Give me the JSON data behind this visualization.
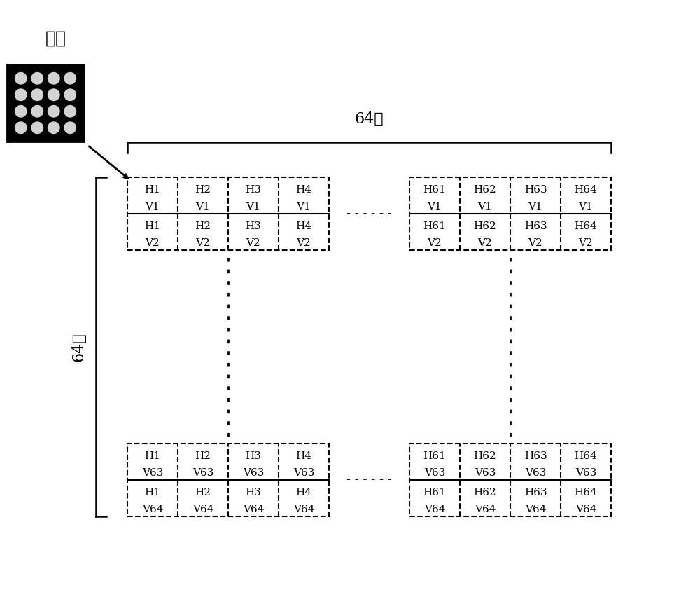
{
  "bg_color": "#ffffff",
  "text_color": "#000000",
  "fiber_label": "光纤",
  "col_label": "64列",
  "row_label": "64排",
  "top_left_cells": [
    [
      "H1",
      "H2",
      "H3",
      "H4"
    ],
    [
      "V1",
      "V1",
      "V1",
      "V1"
    ],
    [
      "H1",
      "H2",
      "H3",
      "H4"
    ],
    [
      "V2",
      "V2",
      "V2",
      "V2"
    ]
  ],
  "top_right_cells": [
    [
      "H61",
      "H62",
      "H63",
      "H64"
    ],
    [
      "V1",
      "V1",
      "V1",
      "V1"
    ],
    [
      "H61",
      "H62",
      "H63",
      "H64"
    ],
    [
      "V2",
      "V2",
      "V2",
      "V2"
    ]
  ],
  "bot_left_cells": [
    [
      "H1",
      "H2",
      "H3",
      "H4"
    ],
    [
      "V63",
      "V63",
      "V63",
      "V63"
    ],
    [
      "H1",
      "H2",
      "H3",
      "H4"
    ],
    [
      "V64",
      "V64",
      "V64",
      "V64"
    ]
  ],
  "bot_right_cells": [
    [
      "H61",
      "H62",
      "H63",
      "H64"
    ],
    [
      "V63",
      "V63",
      "V63",
      "V63"
    ],
    [
      "H61",
      "H62",
      "H63",
      "H64"
    ],
    [
      "V64",
      "V64",
      "V64",
      "V64"
    ]
  ]
}
